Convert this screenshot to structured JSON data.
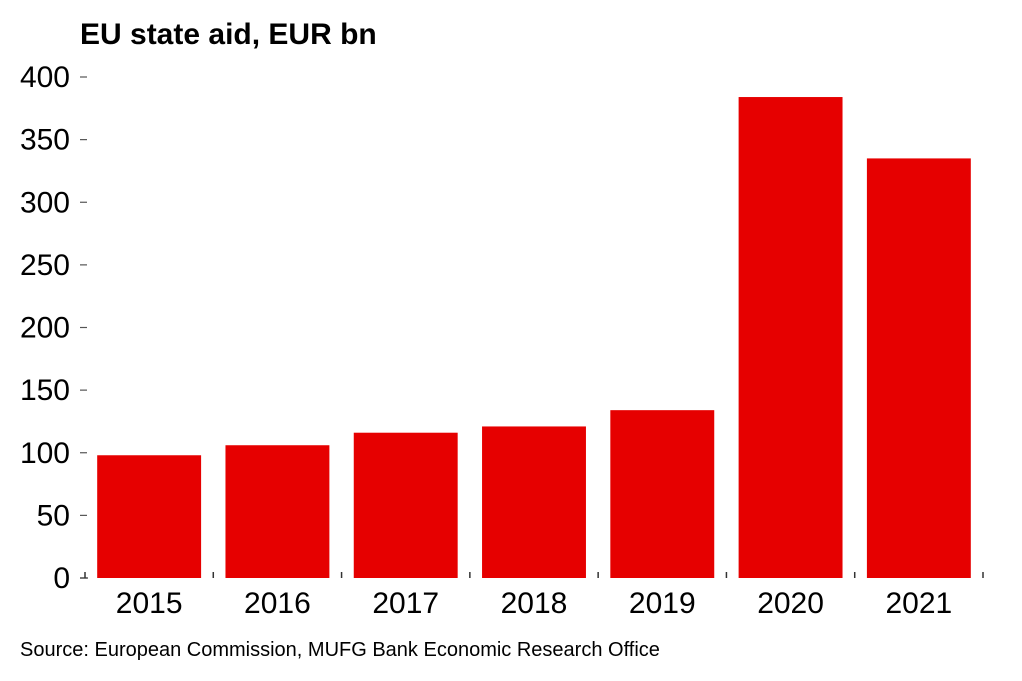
{
  "chart_data": {
    "type": "bar",
    "title": "EU state aid, EUR bn",
    "xlabel": "",
    "ylabel": "",
    "categories": [
      "2015",
      "2016",
      "2017",
      "2018",
      "2019",
      "2020",
      "2021"
    ],
    "values": [
      98,
      106,
      116,
      121,
      134,
      384,
      335
    ],
    "ylim": [
      0,
      400
    ],
    "yticks": [
      0,
      50,
      100,
      150,
      200,
      250,
      300,
      350,
      400
    ],
    "grid": false,
    "legend": "none",
    "bar_color": "#E60000",
    "source": "Source: European Commission, MUFG Bank Economic Research Office"
  }
}
